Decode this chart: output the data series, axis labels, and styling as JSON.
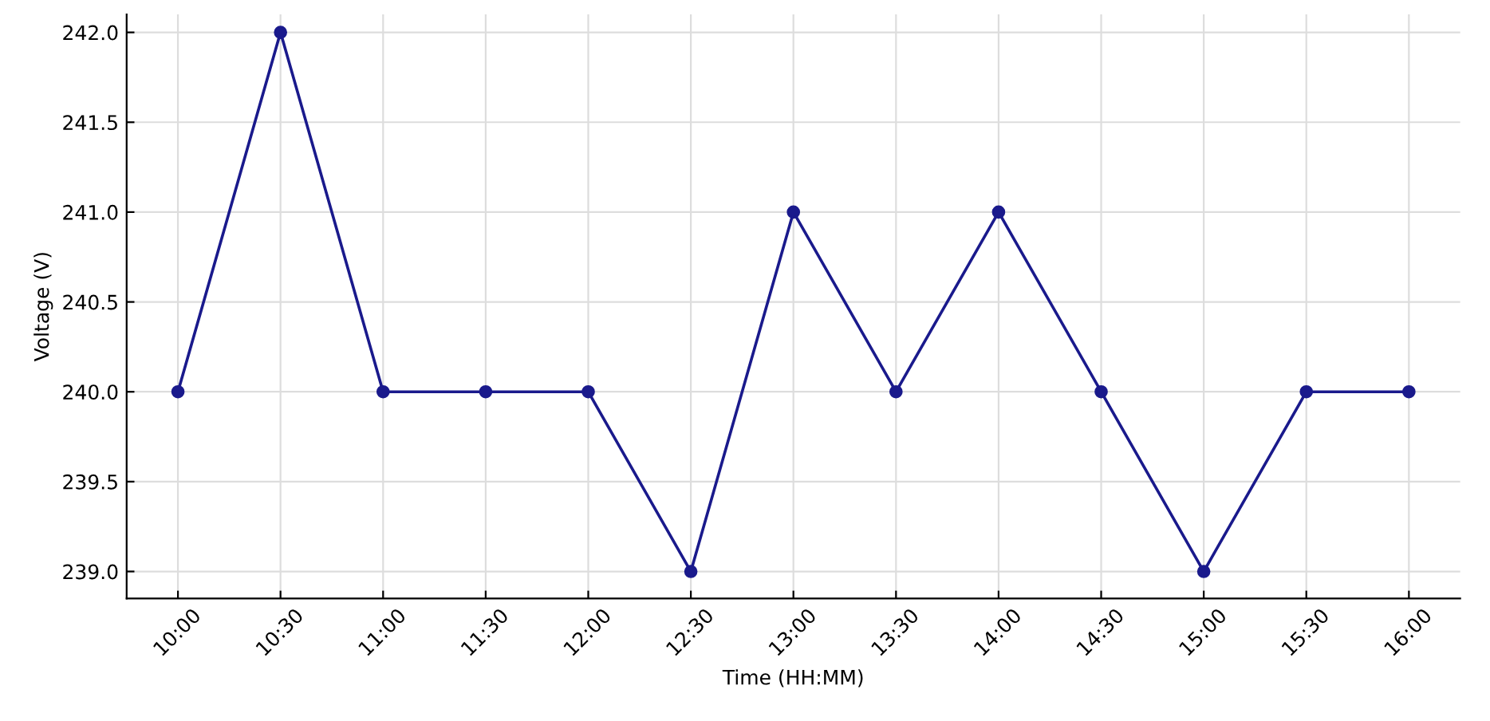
{
  "chart_data": {
    "type": "line",
    "xlabel": "Time (HH:MM)",
    "ylabel": "Voltage (V)",
    "categories": [
      "10:00",
      "10:30",
      "11:00",
      "11:30",
      "12:00",
      "12:30",
      "13:00",
      "13:30",
      "14:00",
      "14:30",
      "15:00",
      "15:30",
      "16:00"
    ],
    "series": [
      {
        "color": "#1a1a8c",
        "values": [
          240,
          242,
          240,
          240,
          240,
          239,
          241,
          240,
          241,
          240,
          239,
          240,
          240
        ]
      }
    ],
    "ylim": [
      238.85,
      242.1
    ],
    "yticks": [
      {
        "value": 239,
        "label": "239.0"
      },
      {
        "value": 239.5,
        "label": "239.5"
      },
      {
        "value": 240,
        "label": "240.0"
      },
      {
        "value": 240.5,
        "label": "240.5"
      },
      {
        "value": 241,
        "label": "241.0"
      },
      {
        "value": 241.5,
        "label": "241.5"
      },
      {
        "value": 242,
        "label": "242.0"
      }
    ],
    "grid": true,
    "marker": "circle",
    "line_style": "solid"
  }
}
